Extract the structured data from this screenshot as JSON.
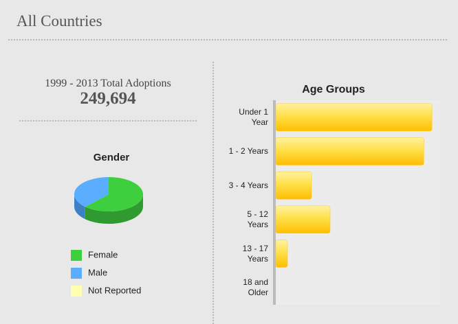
{
  "header": {
    "title": "All Countries"
  },
  "summary": {
    "label": "1999 - 2013 Total Adoptions",
    "value": "249,694"
  },
  "chart_data": [
    {
      "type": "pie",
      "title": "Gender",
      "categories": [
        "Female",
        "Male",
        "Not Reported"
      ],
      "values": [
        62,
        38,
        0
      ],
      "colors": [
        "#3ecf3e",
        "#5aadff",
        "#ffffb3"
      ],
      "side_colors": [
        "#2f9a2f",
        "#3d80c4",
        "#d8d890"
      ]
    },
    {
      "type": "bar",
      "orientation": "horizontal",
      "title": "Age Groups",
      "categories": [
        "Under 1 Year",
        "1 - 2 Years",
        "3 - 4 Years",
        "5 - 12 Years",
        "13 - 17 Years",
        "18 and Older"
      ],
      "values": [
        96000,
        91000,
        22000,
        33400,
        7200,
        0
      ],
      "xlim": [
        0,
        101000
      ],
      "color": "#ffc814"
    }
  ]
}
